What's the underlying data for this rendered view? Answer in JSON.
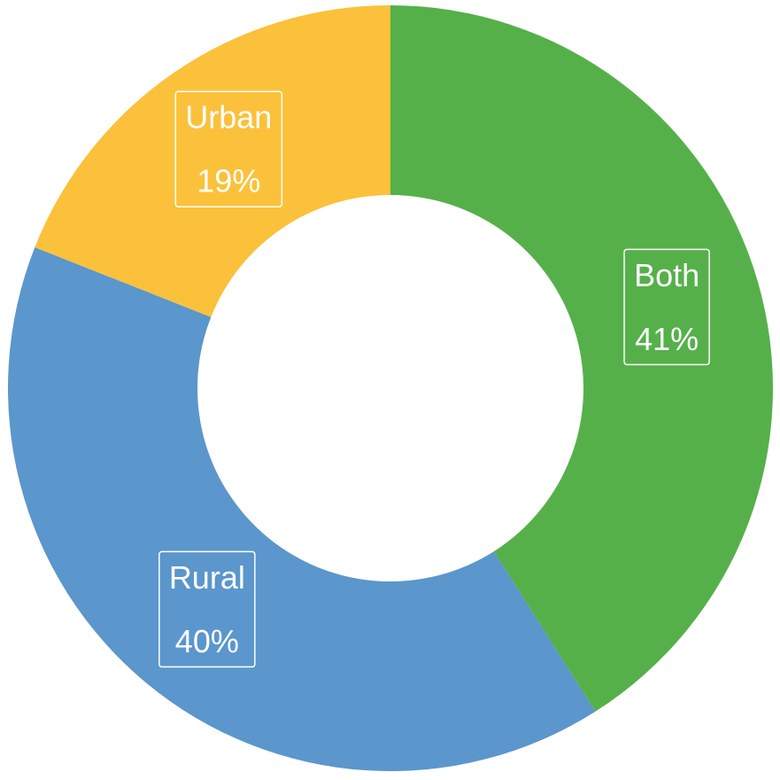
{
  "chart_data": {
    "type": "donut",
    "categories": [
      "Both",
      "Rural",
      "Urban"
    ],
    "values": [
      41,
      40,
      19
    ],
    "value_labels": [
      "41%",
      "40%",
      "19%"
    ],
    "colors": [
      "#56b04a",
      "#5b96cc",
      "#fbc13b"
    ]
  }
}
